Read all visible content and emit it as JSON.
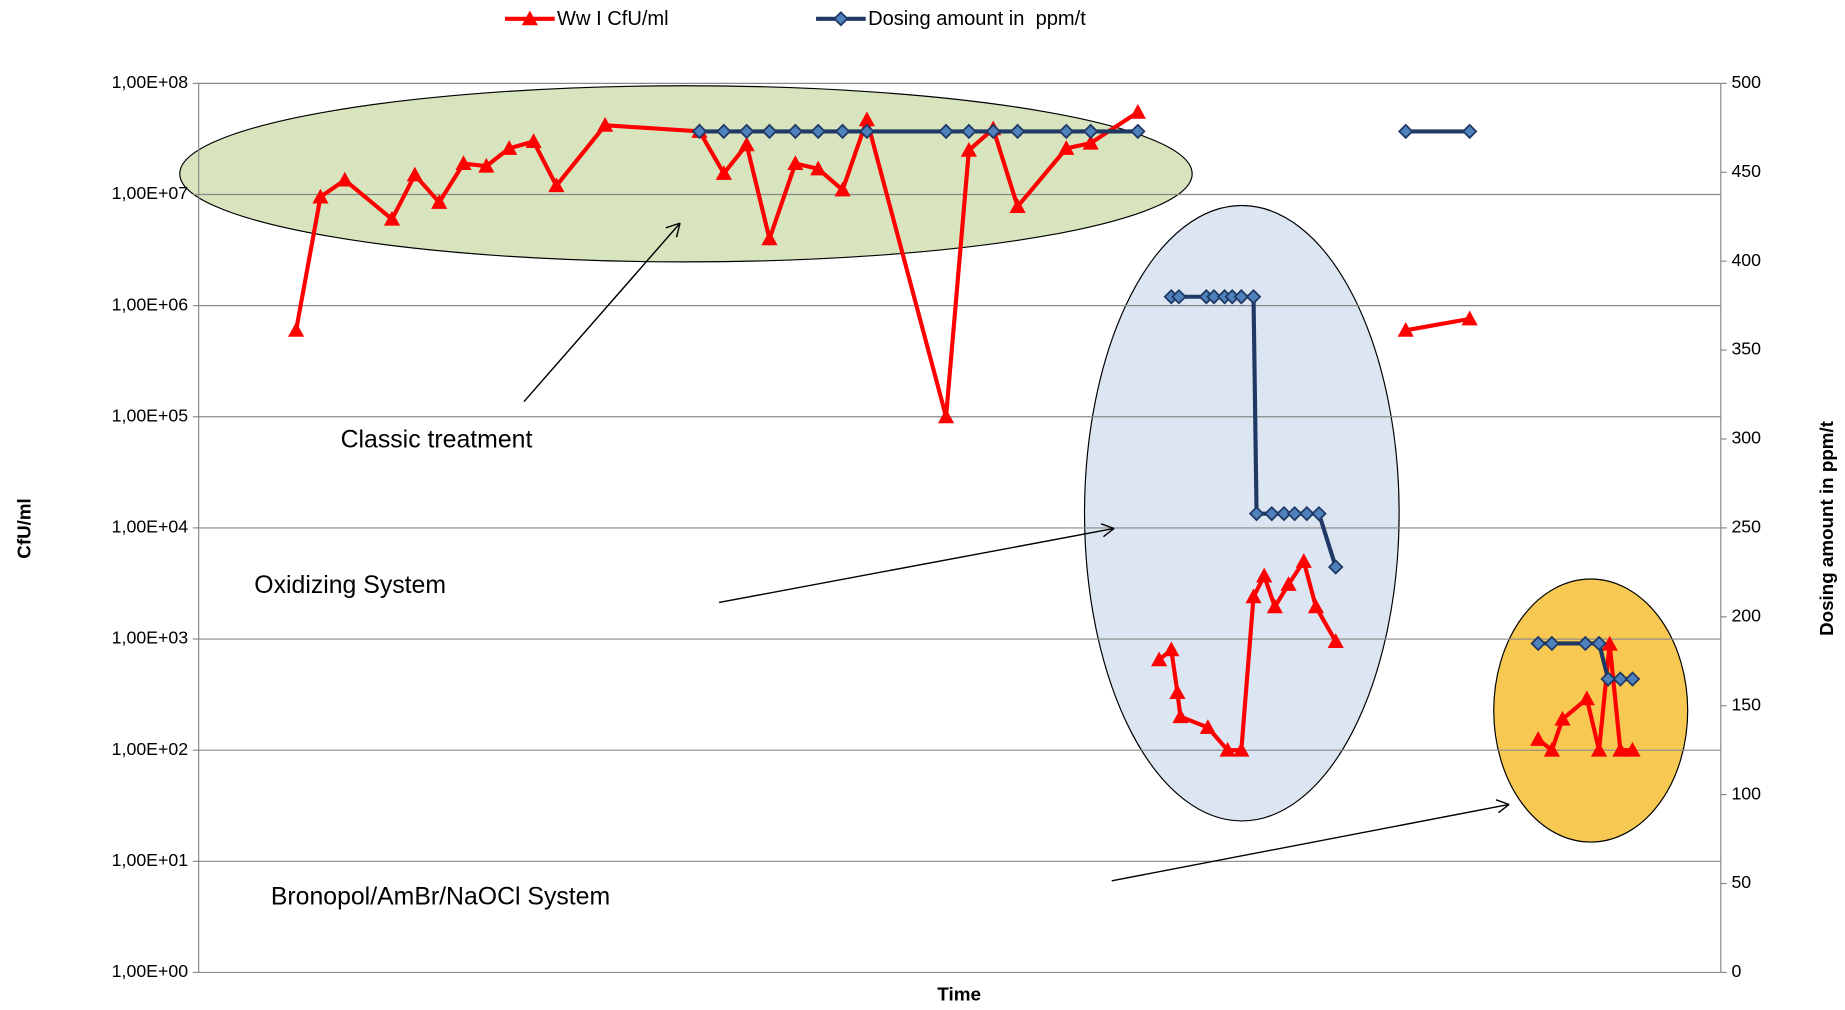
{
  "chart_data": {
    "type": "line",
    "xlabel": "Time",
    "ylabel": "CfU/ml",
    "y2label": "Dosing amount in ppm/t",
    "log_y": true,
    "grid": true,
    "legend": "top",
    "xlim": [
      0,
      100
    ],
    "ylim": [
      1,
      100000000
    ],
    "yticks": [
      {
        "value": 1,
        "label": "1,00E+00"
      },
      {
        "value": 10,
        "label": "1,00E+01"
      },
      {
        "value": 100,
        "label": "1,00E+02"
      },
      {
        "value": 1000,
        "label": "1,00E+03"
      },
      {
        "value": 10000,
        "label": "1,00E+04"
      },
      {
        "value": 100000,
        "label": "1,00E+05"
      },
      {
        "value": 1000000,
        "label": "1,00E+06"
      },
      {
        "value": 10000000,
        "label": "1,00E+07"
      },
      {
        "value": 100000000,
        "label": "1,00E+08"
      }
    ],
    "y2lim": [
      0,
      500
    ],
    "y2ticks": [
      0,
      50,
      100,
      150,
      200,
      250,
      300,
      350,
      400,
      450,
      500
    ],
    "annotations": [
      "Classic treatment",
      "Oxidizing System",
      "Bronopol/AmBr/NaOCl System"
    ],
    "series": [
      {
        "name": "Ww I CfU/ml",
        "color": "#ff0000",
        "marker": "triangle",
        "x": [
          6.4,
          8.0,
          9.6,
          12.7,
          14.2,
          15.8,
          17.4,
          18.9,
          20.4,
          22.0,
          23.5,
          26.7,
          32.9,
          34.5,
          36.0,
          37.5,
          39.2,
          40.7,
          42.3,
          43.9,
          49.1,
          50.6,
          52.2,
          53.8,
          57.0,
          58.6,
          61.7,
          null,
          63.1,
          63.9,
          64.3,
          64.5,
          66.3,
          67.6,
          68.5,
          69.3,
          70.0,
          70.7,
          71.6,
          72.6,
          73.4,
          74.7,
          null,
          79.3,
          83.5,
          null,
          88.0,
          88.9,
          89.6,
          91.2,
          92.0,
          92.7,
          93.4,
          94.2
        ],
        "values": [
          600000,
          9500000,
          13500000,
          6000000,
          15000000,
          8500000,
          19000000,
          18000000,
          26000000,
          30000000,
          12000000,
          42000000,
          37000000,
          15500000,
          28000000,
          4000000,
          19000000,
          17000000,
          11000000,
          47000000,
          100000,
          25000000,
          39000000,
          7800000,
          26000000,
          29000000,
          55000000,
          null,
          650,
          800,
          330,
          200,
          160,
          100,
          100,
          2400,
          3700,
          1950,
          3100,
          5000,
          1950,
          950,
          null,
          600000,
          760000,
          null,
          125,
          100,
          190,
          290,
          100,
          900,
          100,
          100
        ]
      },
      {
        "name": "Dosing amount in  ppm/t",
        "color": "#1f3864",
        "marker": "diamond",
        "axis": "y2",
        "x": [
          32.9,
          34.5,
          36.0,
          37.5,
          39.2,
          40.7,
          42.3,
          43.9,
          49.1,
          50.6,
          52.2,
          53.8,
          57.0,
          58.6,
          61.7,
          null,
          63.9,
          64.4,
          66.2,
          66.7,
          67.4,
          67.9,
          68.5,
          69.3,
          69.5,
          70.5,
          71.3,
          72.0,
          72.8,
          73.6,
          74.7,
          null,
          79.3,
          83.5,
          null,
          88.0,
          88.9,
          91.1,
          92.0,
          92.6,
          93.4,
          94.2
        ],
        "values": [
          473,
          473,
          473,
          473,
          473,
          473,
          473,
          473,
          473,
          473,
          473,
          473,
          473,
          473,
          473,
          null,
          380,
          380,
          380,
          380,
          380,
          380,
          380,
          380,
          258,
          258,
          258,
          258,
          258,
          258,
          228,
          null,
          473,
          473,
          null,
          185,
          185,
          185,
          185,
          165,
          165,
          165
        ]
      }
    ]
  }
}
